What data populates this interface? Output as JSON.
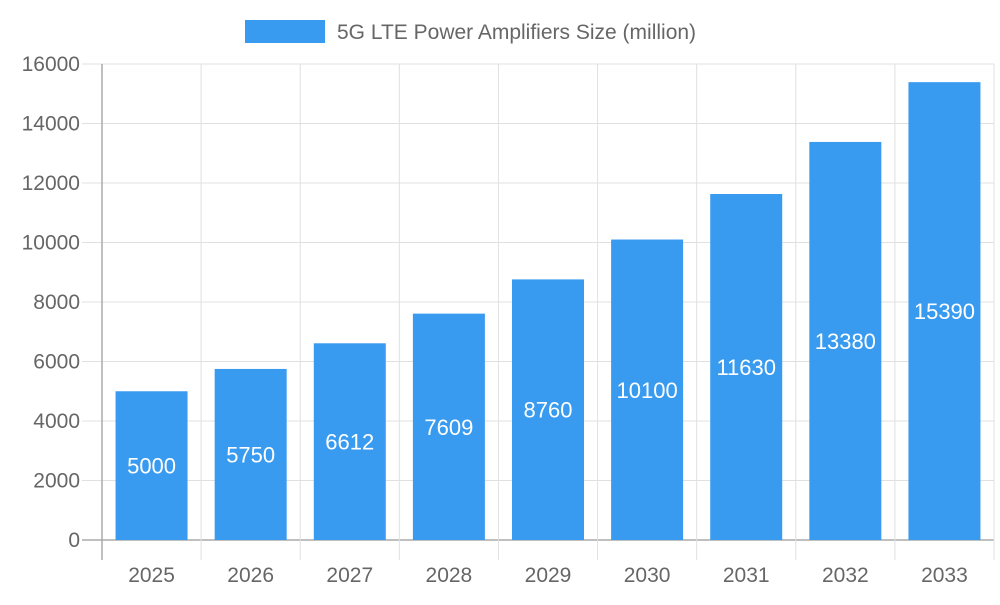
{
  "chart_data": {
    "type": "bar",
    "title": "",
    "xlabel": "",
    "ylabel": "",
    "categories": [
      "2025",
      "2026",
      "2027",
      "2028",
      "2029",
      "2030",
      "2031",
      "2032",
      "2033"
    ],
    "series": [
      {
        "name": "5G LTE Power Amplifiers Size (million)",
        "values": [
          5000,
          5750,
          6612,
          7609,
          8760,
          10100,
          11630,
          13380,
          15390
        ],
        "color": "#389BF0"
      }
    ],
    "ylim": [
      0,
      16000
    ],
    "yticks": [
      0,
      2000,
      4000,
      6000,
      8000,
      10000,
      12000,
      14000,
      16000
    ],
    "grid": true,
    "legend": "top-center",
    "data_labels": true
  }
}
